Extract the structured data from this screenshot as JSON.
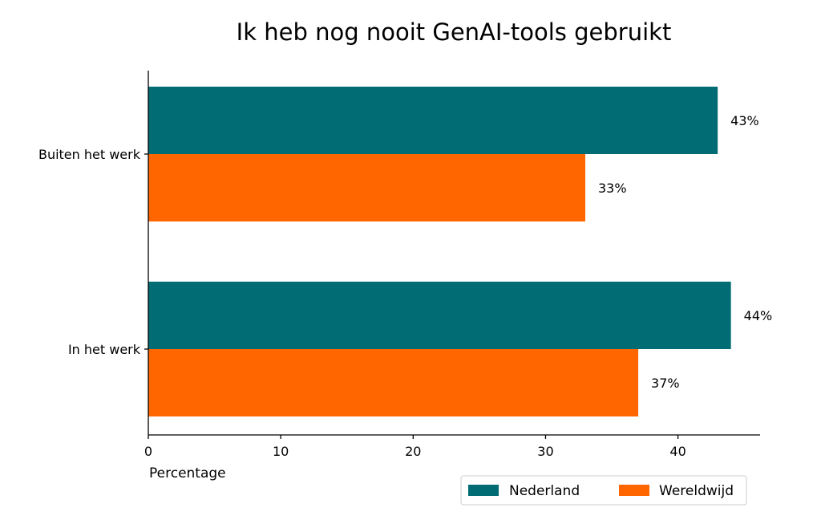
{
  "chart_data": {
    "type": "bar",
    "orientation": "horizontal",
    "title": "Ik heb nog nooit GenAI-tools gebruikt",
    "xlabel": "Percentage",
    "ylabel": "",
    "categories": [
      "Buiten het werk",
      "In het werk"
    ],
    "series": [
      {
        "name": "Nederland",
        "color": "#026c74",
        "values": [
          43,
          44
        ],
        "labels": [
          "43%",
          "44%"
        ]
      },
      {
        "name": "Wereldwijd",
        "color": "#ff6600",
        "values": [
          33,
          37
        ],
        "labels": [
          "33%",
          "37%"
        ]
      }
    ],
    "xlim": [
      0,
      46.2
    ],
    "xticks": [
      0,
      10,
      20,
      30,
      40
    ],
    "xtick_labels": [
      "0",
      "10",
      "20",
      "30",
      "40"
    ],
    "grid": false,
    "legend_position": "bottom-right"
  }
}
